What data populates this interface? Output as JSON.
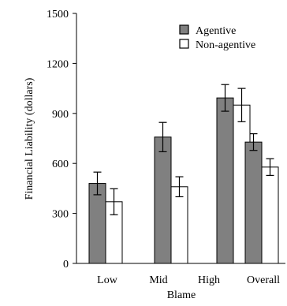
{
  "chart_data": {
    "type": "bar",
    "title": "",
    "xlabel": "Blame",
    "ylabel": "Financial Liability (dollars)",
    "ylim": [
      0,
      1500
    ],
    "yticks": [
      0,
      300,
      600,
      900,
      1200,
      1500
    ],
    "grid": false,
    "legend_position": "top-right",
    "categories": [
      "Low",
      "Mid",
      "High",
      "Overall"
    ],
    "series": [
      {
        "name": "Agentive",
        "color": "#808080",
        "values": [
          480,
          758,
          993,
          728
        ],
        "error": [
          68,
          88,
          80,
          50
        ]
      },
      {
        "name": "Non-agentive",
        "color": "#ffffff",
        "values": [
          370,
          460,
          950,
          578
        ],
        "error": [
          78,
          60,
          100,
          50
        ]
      }
    ]
  }
}
